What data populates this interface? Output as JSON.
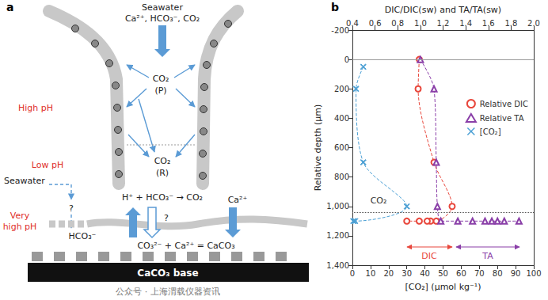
{
  "diagram": {
    "panel_label": "a",
    "texts": {
      "seawater_top": "Seawater",
      "ions_top": "Ca²⁺, HCO₃⁻, CO₂",
      "co2_p": "CO₂",
      "p": "(P)",
      "high_ph": "High pH",
      "low_ph": "Low pH",
      "co2_r": "CO₂",
      "r": "(R)",
      "reaction": "H⁺ + HCO₃⁻ → CO₂",
      "seawater_left": "Seawater",
      "q1": "?",
      "q2": "?",
      "very_high_ph": [
        "Very",
        "high pH"
      ],
      "hco3": "HCO₃⁻",
      "precipitation": "CO₃²⁻ + Ca²⁺ = CaCO₃",
      "ca": "Ca²⁺",
      "base": "CaCO₃ base"
    }
  },
  "chart_data": {
    "type": "line",
    "panel_label": "b",
    "xlabel": "[CO₂] (μmol kg⁻¹)",
    "x2label": "DIC/DIC(sw) and TA/TA(sw)",
    "ylabel": "Relative depth (μm)",
    "xlim": [
      0,
      100
    ],
    "xticks": [
      0,
      10,
      20,
      30,
      40,
      50,
      60,
      70,
      80,
      90,
      100
    ],
    "x2lim": [
      0.4,
      2.0
    ],
    "x2ticks": [
      0.4,
      0.6,
      0.8,
      {
        "value": 1,
        "label": "1.0"
      },
      1.2,
      1.4,
      1.6,
      1.8,
      {
        "value": 2,
        "label": "2.0"
      }
    ],
    "ylim": [
      1400,
      -200
    ],
    "yticks": [
      -200,
      0,
      200,
      400,
      600,
      800,
      {
        "value": 1000,
        "label": "1,000"
      },
      {
        "value": 1200,
        "label": "1,200"
      },
      {
        "value": 1400,
        "label": "1,400"
      }
    ],
    "grid": false,
    "legend": "right",
    "series": [
      {
        "name": "Relative DIC",
        "color": "#e8473c",
        "marker": "circle",
        "line_style": "dashed",
        "axis": "x2",
        "x": [
          0.99,
          0.98,
          1.12,
          1.28,
          1.14,
          1.09,
          1.06,
          0.99,
          0.88
        ],
        "y": [
          0,
          200,
          700,
          1000,
          1100,
          1100,
          1100,
          1100,
          1100
        ]
      },
      {
        "name": "Relative TA",
        "color": "#8a3fa8",
        "marker": "triangle",
        "line_style": "dashed",
        "axis": "x2",
        "x": [
          1.0,
          1.12,
          1.14,
          1.15,
          1.18,
          1.33,
          1.46,
          1.57,
          1.63,
          1.68,
          1.74,
          1.87
        ],
        "y": [
          0,
          200,
          700,
          1000,
          1100,
          1100,
          1100,
          1100,
          1100,
          1100,
          1100,
          1100
        ]
      },
      {
        "name": "[CO₂]",
        "color": "#4a9fd4",
        "marker": "x",
        "line_style": "dashed",
        "axis": "x",
        "x": [
          6,
          2,
          6,
          30,
          1.5,
          0.5
        ],
        "y": [
          50,
          200,
          700,
          1000,
          1100,
          1100
        ]
      }
    ],
    "reference_lines": [
      {
        "y": 0,
        "color": "#9a9a9a",
        "line_style": "solid"
      },
      {
        "y": 1040,
        "color": "#555555",
        "line_style": "dotted"
      }
    ],
    "annotations": [
      {
        "text": "CO₂",
        "color": "#333333"
      },
      {
        "text": "DIC",
        "color": "#e8473c"
      },
      {
        "text": "TA",
        "color": "#8a3fa8"
      }
    ]
  },
  "watermark": "公众号 · 上海渭载仪器资讯"
}
